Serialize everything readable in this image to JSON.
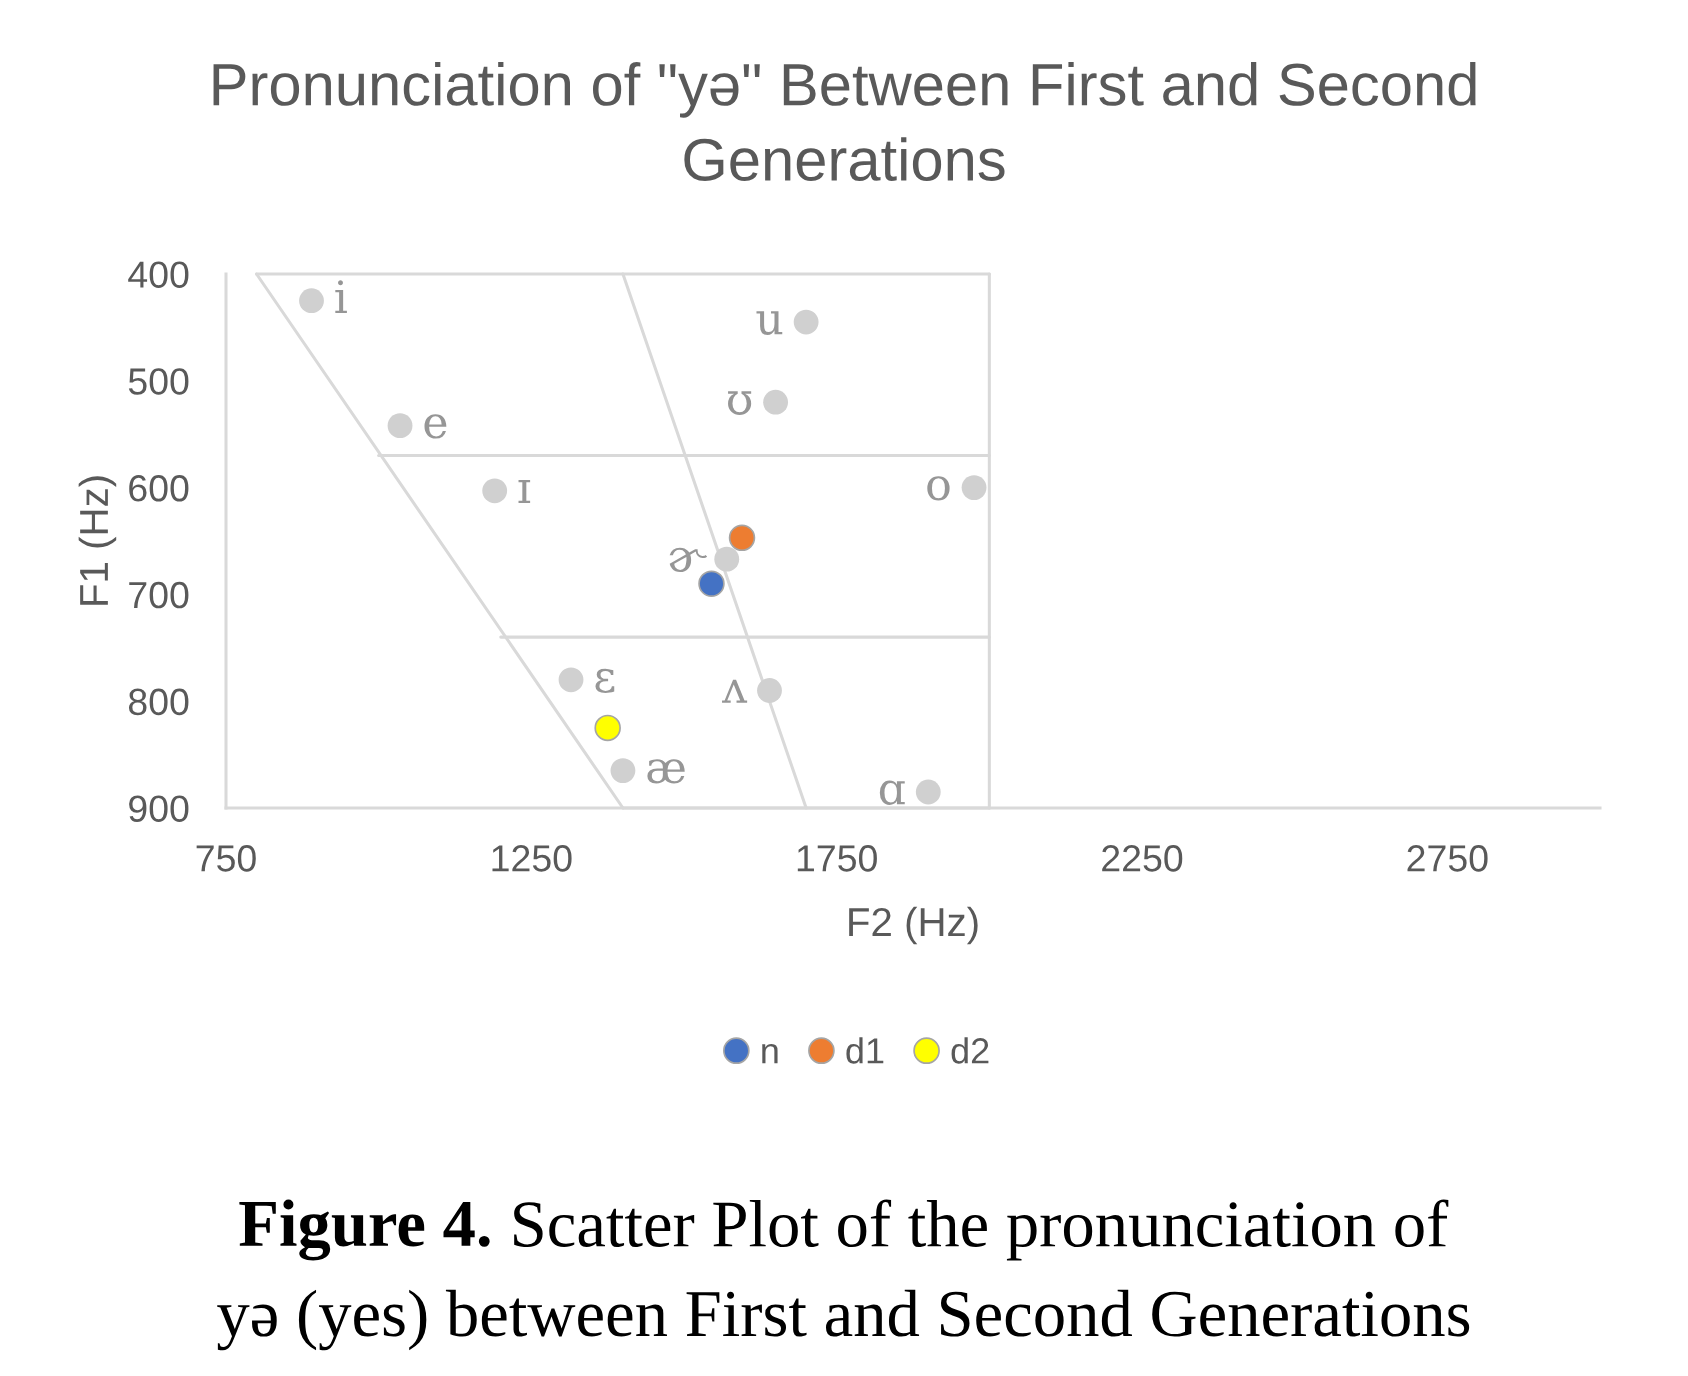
{
  "chart_data": {
    "type": "scatter",
    "title": "Pronunciation of \"yə\" Between First and Second\nGenerations",
    "xlabel": "F2 (Hz)",
    "ylabel": "F1 (Hz)",
    "xlim": [
      750,
      3000
    ],
    "xticks": [
      750,
      1250,
      1750,
      2250,
      2750
    ],
    "ylim": [
      900,
      400
    ],
    "yticks": [
      400,
      500,
      600,
      700,
      800,
      900
    ],
    "marker": "circle",
    "legend": "bottom",
    "series": [
      {
        "type": "line",
        "color": "#d9d9d9",
        "marker": "none",
        "x": [
          800,
          2000
        ],
        "values": [
          400,
          400
        ]
      },
      {
        "type": "line",
        "color": "#d9d9d9",
        "marker": "none",
        "x": [
          800,
          1400
        ],
        "values": [
          400,
          900
        ]
      },
      {
        "type": "line",
        "color": "#d9d9d9",
        "marker": "none",
        "x": [
          1400,
          2000
        ],
        "values": [
          900,
          900
        ]
      },
      {
        "type": "line",
        "color": "#d9d9d9",
        "marker": "none",
        "x": [
          1400,
          1700
        ],
        "values": [
          400,
          900
        ]
      },
      {
        "type": "line",
        "color": "#d9d9d9",
        "marker": "none",
        "x": [
          1000,
          2000
        ],
        "values": [
          570,
          570
        ]
      },
      {
        "type": "line",
        "color": "#d9d9d9",
        "marker": "none",
        "x": [
          1200,
          2000
        ],
        "values": [
          740,
          740
        ]
      },
      {
        "type": "scatter",
        "color": "#d0d0d0",
        "x": [
          890,
          1035,
          1190,
          1315,
          1400,
          1570,
          1640,
          1650,
          1700,
          1900,
          1975
        ],
        "values": [
          425,
          542,
          603,
          780,
          865,
          667,
          790,
          520,
          445,
          885,
          600
        ],
        "value_labels": [
          "i",
          "e",
          "ɪ",
          "ɛ",
          "æ",
          "ɚ",
          "ʌ",
          "ʊ",
          "u",
          "ɑ",
          "o"
        ]
      },
      {
        "name": "n",
        "color": "#4472c4",
        "x": [
          1545
        ],
        "values": [
          690
        ]
      },
      {
        "name": "d1",
        "color": "#ed7d31",
        "x": [
          1595
        ],
        "values": [
          647
        ]
      },
      {
        "name": "d2",
        "color": "#ffff00",
        "x": [
          1375
        ],
        "values": [
          825
        ]
      }
    ],
    "ref_lines": [
      {
        "axis": "x",
        "value": 2000,
        "color": "#d9d9d9"
      }
    ],
    "annotations": [
      "Figure 4.",
      "Scatter Plot of the pronunciation of\nyə (yes) between First and Second Generations"
    ]
  }
}
